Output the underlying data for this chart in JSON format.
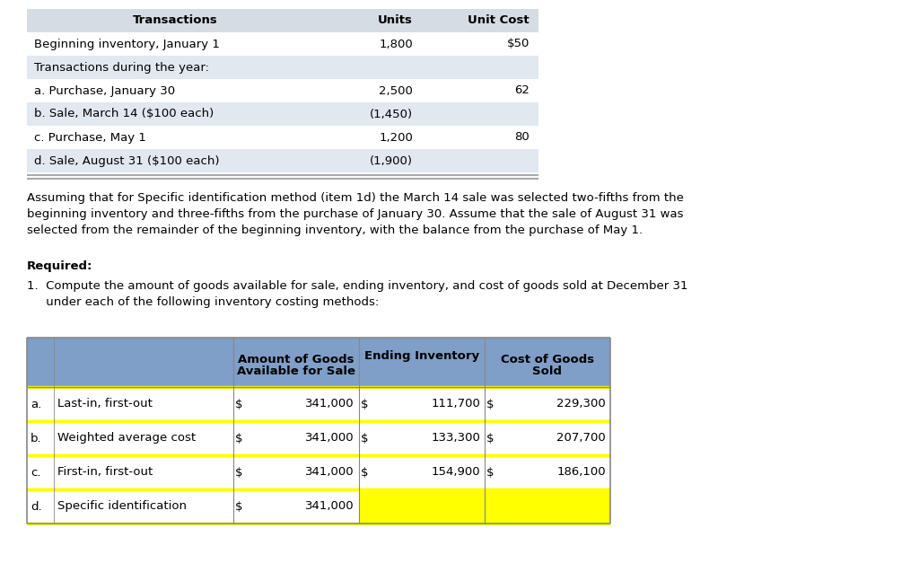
{
  "background_color": "#ffffff",
  "top_table": {
    "header_bg": "#d6dce4",
    "row_bg_alt": "#e2e8f0",
    "row_bg_white": "#ffffff",
    "cols": [
      "Transactions",
      "Units",
      "Unit Cost"
    ],
    "rows": [
      [
        "Beginning inventory, January 1",
        "1,800",
        "$50"
      ],
      [
        "Transactions during the year:",
        "",
        ""
      ],
      [
        "a. Purchase, January 30",
        "2,500",
        "62"
      ],
      [
        "b. Sale, March 14 ($100 each)",
        "(1,450)",
        ""
      ],
      [
        "c. Purchase, May 1",
        "1,200",
        "80"
      ],
      [
        "d. Sale, August 31 ($100 each)",
        "(1,900)",
        ""
      ]
    ]
  },
  "paragraph_lines": [
    "Assuming that for Specific identification method (item 1d) the March 14 sale was selected two-fifths from the",
    "beginning inventory and three-fifths from the purchase of January 30. Assume that the sale of August 31 was",
    "selected from the remainder of the beginning inventory, with the balance from the purchase of May 1."
  ],
  "required_label": "Required:",
  "required_lines": [
    "1.  Compute the amount of goods available for sale, ending inventory, and cost of goods sold at December 31",
    "     under each of the following inventory costing methods:"
  ],
  "bottom_table": {
    "header_bg": "#7f9ec8",
    "cell_bg": "#ffffff",
    "yellow_bg": "#ffff00",
    "border_dark": "#555555",
    "border_yellow": "#ffff00",
    "rows": [
      [
        "a.",
        "Last-in, first-out",
        "$",
        "341,000",
        "$",
        "111,700",
        "$",
        "229,300"
      ],
      [
        "b.",
        "Weighted average cost",
        "$",
        "341,000",
        "$",
        "133,300",
        "$",
        "207,700"
      ],
      [
        "c.",
        "First-in, first-out",
        "$",
        "341,000",
        "$",
        "154,900",
        "$",
        "186,100"
      ],
      [
        "d.",
        "Specific identification",
        "$",
        "341,000",
        "",
        "",
        "",
        ""
      ]
    ]
  },
  "font_size": 9.5,
  "font_family": "DejaVu Sans"
}
